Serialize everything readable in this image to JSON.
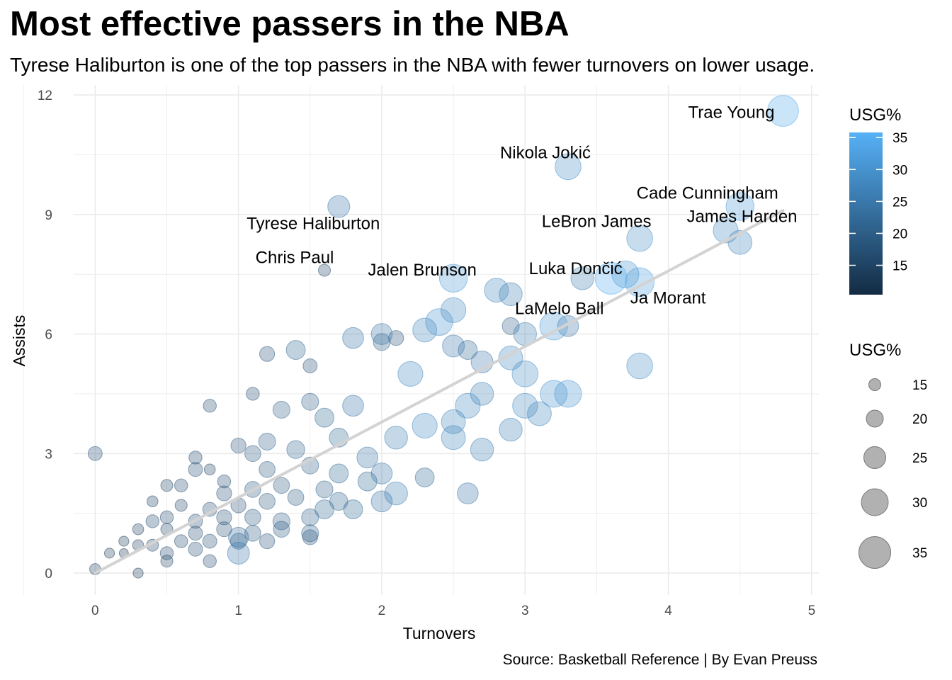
{
  "title": "Most effective passers in the NBA",
  "subtitle": "Tyrese Haliburton is one of the top passers in the NBA with fewer turnovers on lower usage.",
  "caption": "Source: Basketball Reference | By Evan Preuss",
  "chart_data": {
    "type": "scatter",
    "title": "Most effective passers in the NBA",
    "subtitle": "Tyrese Haliburton is one of the top passers in the NBA with fewer turnovers on lower usage.",
    "xlabel": "Turnovers",
    "ylabel": "Assists",
    "xlim": [
      -0.15,
      5.05
    ],
    "ylim": [
      -0.55,
      12.25
    ],
    "x_ticks": [
      "0",
      "1",
      "2",
      "3",
      "4",
      "5"
    ],
    "y_ticks": [
      "0",
      "3",
      "6",
      "9",
      "12"
    ],
    "grid": true,
    "trend_line": {
      "x": [
        0,
        4.8
      ],
      "y": [
        0,
        9.1
      ],
      "color": "#d3d3d3"
    },
    "color_scale": {
      "low": "#132B43",
      "high": "#56B1F7"
    },
    "legend": {
      "position": "right",
      "color_title": "USG%",
      "color_ticks": [
        "15",
        "20",
        "25",
        "30",
        "35"
      ],
      "size_title": "USG%",
      "size_ticks": [
        "15",
        "20",
        "25",
        "30",
        "35"
      ],
      "size_swatch_color": "#a9a9a9"
    },
    "labeled_points": [
      {
        "name": "Trae Young",
        "x": 4.8,
        "y": 11.6,
        "usg": 34
      },
      {
        "name": "Nikola Jokić",
        "x": 3.3,
        "y": 10.2,
        "usg": 29
      },
      {
        "name": "Cade Cunningham",
        "x": 4.5,
        "y": 9.2,
        "usg": 31
      },
      {
        "name": "Tyrese Haliburton",
        "x": 1.7,
        "y": 9.2,
        "usg": 25
      },
      {
        "name": "LeBron James",
        "x": 3.8,
        "y": 8.4,
        "usg": 29
      },
      {
        "name": "James Harden",
        "x": 4.4,
        "y": 8.6,
        "usg": 28
      },
      {
        "name": "Chris Paul",
        "x": 1.6,
        "y": 7.6,
        "usg": 15
      },
      {
        "name": "Luka Dončić",
        "x": 3.6,
        "y": 7.4,
        "usg": 35
      },
      {
        "name": "Jalen Brunson",
        "x": 2.5,
        "y": 7.4,
        "usg": 31
      },
      {
        "name": "LaMelo Ball",
        "x": 3.2,
        "y": 6.2,
        "usg": 31
      },
      {
        "name": "Ja Morant",
        "x": 3.8,
        "y": 7.3,
        "usg": 32
      }
    ],
    "other_points": [
      [
        4.5,
        8.3,
        27
      ],
      [
        3.8,
        5.2,
        29
      ],
      [
        3.4,
        7.4,
        26
      ],
      [
        3.7,
        7.5,
        30
      ],
      [
        2.8,
        7.1,
        27
      ],
      [
        2.9,
        7.0,
        26
      ],
      [
        2.5,
        6.6,
        28
      ],
      [
        2.4,
        6.3,
        30
      ],
      [
        2.3,
        6.1,
        27
      ],
      [
        2.5,
        5.7,
        25
      ],
      [
        2.6,
        5.6,
        22
      ],
      [
        2.9,
        6.2,
        20
      ],
      [
        3.3,
        6.2,
        24
      ],
      [
        3.0,
        6.0,
        26
      ],
      [
        2.7,
        5.3,
        25
      ],
      [
        2.2,
        5.0,
        28
      ],
      [
        2.0,
        6.0,
        24
      ],
      [
        1.8,
        5.9,
        24
      ],
      [
        2.1,
        5.9,
        18
      ],
      [
        2.0,
        5.8,
        20
      ],
      [
        1.4,
        5.6,
        22
      ],
      [
        1.2,
        5.5,
        18
      ],
      [
        1.5,
        5.2,
        17
      ],
      [
        1.1,
        4.5,
        16
      ],
      [
        0.8,
        4.2,
        16
      ],
      [
        2.9,
        5.4,
        27
      ],
      [
        3.0,
        5.0,
        29
      ],
      [
        3.2,
        4.5,
        30
      ],
      [
        3.3,
        4.5,
        30
      ],
      [
        3.0,
        4.2,
        28
      ],
      [
        2.7,
        4.5,
        26
      ],
      [
        2.6,
        4.2,
        28
      ],
      [
        2.5,
        3.8,
        27
      ],
      [
        2.3,
        3.7,
        28
      ],
      [
        2.5,
        3.4,
        27
      ],
      [
        2.7,
        3.1,
        26
      ],
      [
        2.9,
        3.6,
        26
      ],
      [
        3.1,
        4.0,
        27
      ],
      [
        2.3,
        2.4,
        22
      ],
      [
        2.6,
        2.0,
        24
      ],
      [
        2.1,
        2.0,
        26
      ],
      [
        1.9,
        2.9,
        24
      ],
      [
        2.1,
        3.4,
        26
      ],
      [
        1.8,
        4.2,
        24
      ],
      [
        1.6,
        3.9,
        22
      ],
      [
        1.5,
        4.3,
        20
      ],
      [
        1.3,
        4.1,
        20
      ],
      [
        1.7,
        3.4,
        22
      ],
      [
        1.4,
        3.1,
        21
      ],
      [
        1.2,
        3.3,
        20
      ],
      [
        1.0,
        3.2,
        18
      ],
      [
        0.7,
        2.9,
        16
      ],
      [
        0.7,
        2.6,
        17
      ],
      [
        0.8,
        2.6,
        14
      ],
      [
        1.2,
        2.6,
        19
      ],
      [
        1.5,
        2.7,
        20
      ],
      [
        1.7,
        2.5,
        22
      ],
      [
        2.0,
        2.5,
        24
      ],
      [
        1.9,
        2.3,
        22
      ],
      [
        1.6,
        2.1,
        20
      ],
      [
        1.3,
        2.2,
        19
      ],
      [
        1.1,
        2.1,
        19
      ],
      [
        0.9,
        2.0,
        18
      ],
      [
        0.6,
        2.2,
        16
      ],
      [
        0.5,
        2.2,
        15
      ],
      [
        0.4,
        1.8,
        14
      ],
      [
        0.6,
        1.7,
        15
      ],
      [
        0.8,
        1.6,
        17
      ],
      [
        1.0,
        1.7,
        18
      ],
      [
        1.2,
        1.8,
        19
      ],
      [
        1.4,
        1.9,
        19
      ],
      [
        1.7,
        1.8,
        21
      ],
      [
        1.8,
        1.6,
        22
      ],
      [
        1.5,
        1.4,
        20
      ],
      [
        1.3,
        1.3,
        20
      ],
      [
        1.1,
        1.4,
        19
      ],
      [
        0.9,
        1.4,
        18
      ],
      [
        0.7,
        1.3,
        17
      ],
      [
        0.5,
        1.4,
        16
      ],
      [
        0.4,
        1.3,
        16
      ],
      [
        0.3,
        1.1,
        14
      ],
      [
        0.5,
        1.1,
        15
      ],
      [
        0.7,
        1.0,
        17
      ],
      [
        0.9,
        1.1,
        18
      ],
      [
        1.1,
        1.0,
        19
      ],
      [
        1.3,
        1.1,
        19
      ],
      [
        1.5,
        1.0,
        20
      ],
      [
        1.2,
        0.8,
        18
      ],
      [
        1.0,
        0.8,
        19
      ],
      [
        0.8,
        0.8,
        17
      ],
      [
        0.6,
        0.8,
        16
      ],
      [
        0.4,
        0.7,
        15
      ],
      [
        0.3,
        0.7,
        14
      ],
      [
        0.2,
        0.8,
        13
      ],
      [
        0.1,
        0.5,
        13
      ],
      [
        0.2,
        0.5,
        12
      ],
      [
        0.5,
        0.5,
        16
      ],
      [
        0.7,
        0.6,
        17
      ],
      [
        1.0,
        0.5,
        25
      ],
      [
        1.0,
        0.9,
        23
      ],
      [
        0.3,
        0.0,
        13
      ],
      [
        0.0,
        0.1,
        14
      ],
      [
        0.5,
        0.3,
        15
      ],
      [
        0.8,
        0.3,
        16
      ],
      [
        1.5,
        0.9,
        18
      ],
      [
        0.0,
        3.0,
        17
      ],
      [
        1.1,
        3.0,
        19
      ],
      [
        0.9,
        2.3,
        16
      ],
      [
        1.6,
        1.6,
        22
      ],
      [
        2.0,
        1.8,
        24
      ]
    ]
  }
}
